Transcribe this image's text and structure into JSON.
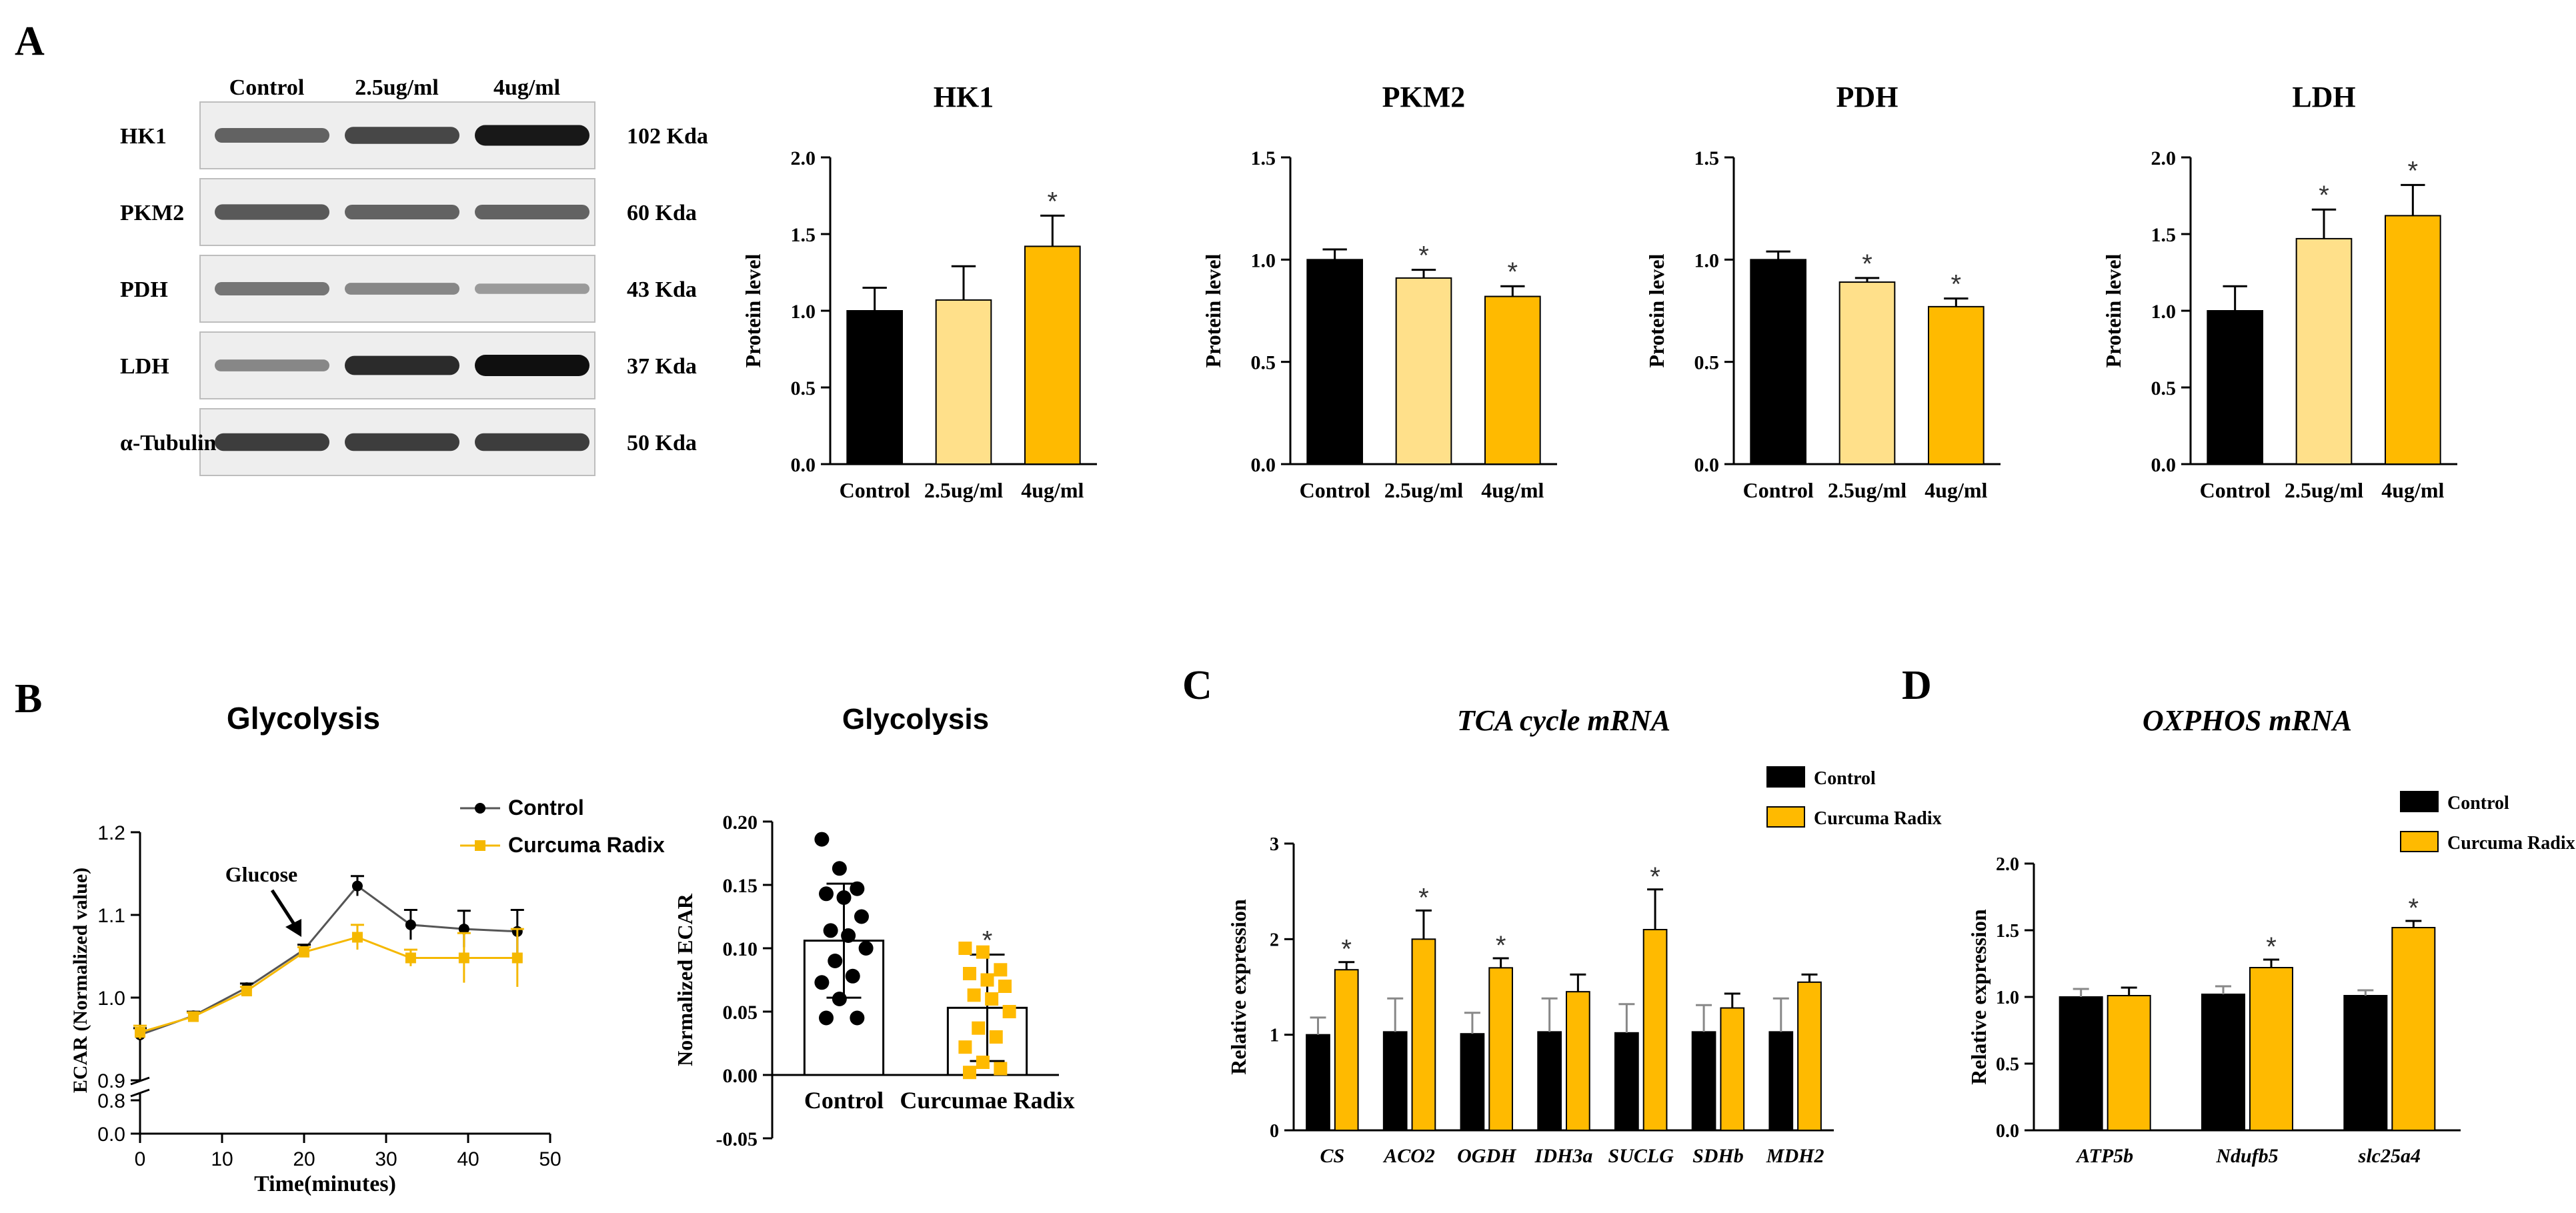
{
  "panels": {
    "A": "A",
    "B": "B",
    "C": "C",
    "D": "D"
  },
  "colors": {
    "control": "#000000",
    "low": "#FFE08A",
    "high": "#FFBA00",
    "herb": "#FFBA00",
    "line_herb": "#F5B800"
  },
  "western": {
    "columns": [
      "Control",
      "2.5ug/ml",
      "4ug/ml"
    ],
    "rows": [
      {
        "name": "HK1",
        "kda": "102 Kda",
        "intensity": [
          0.55,
          0.7,
          0.95
        ]
      },
      {
        "name": "PKM2",
        "kda": "60 Kda",
        "intensity": [
          0.6,
          0.55,
          0.55
        ]
      },
      {
        "name": "PDH",
        "kda": "43 Kda",
        "intensity": [
          0.45,
          0.35,
          0.25
        ]
      },
      {
        "name": "LDH",
        "kda": "37 Kda",
        "intensity": [
          0.35,
          0.85,
          1.0
        ]
      },
      {
        "name": "α-Tubulin",
        "kda": "50 Kda",
        "intensity": [
          0.75,
          0.75,
          0.75
        ]
      }
    ]
  },
  "chart_data": [
    {
      "id": "hk1",
      "type": "bar",
      "title": "HK1",
      "ylabel": "Protein level",
      "categories": [
        "Control",
        "2.5ug/ml",
        "4ug/ml"
      ],
      "values": [
        1.0,
        1.07,
        1.42
      ],
      "errors": [
        0.15,
        0.22,
        0.2
      ],
      "significance": [
        "",
        "",
        "*"
      ],
      "ylim": [
        0,
        2.0
      ],
      "yticks": [
        "0.0",
        "0.5",
        "1.0",
        "1.5",
        "2.0"
      ],
      "ytick_values": [
        0,
        0.5,
        1.0,
        1.5,
        2.0
      ]
    },
    {
      "id": "pkm2",
      "type": "bar",
      "title": "PKM2",
      "ylabel": "Protein level",
      "categories": [
        "Control",
        "2.5ug/ml",
        "4ug/ml"
      ],
      "values": [
        1.0,
        0.91,
        0.82
      ],
      "errors": [
        0.05,
        0.04,
        0.05
      ],
      "significance": [
        "",
        "*",
        "*"
      ],
      "ylim": [
        0,
        1.5
      ],
      "yticks": [
        "0.0",
        "0.5",
        "1.0",
        "1.5"
      ],
      "ytick_values": [
        0,
        0.5,
        1.0,
        1.5
      ]
    },
    {
      "id": "pdh",
      "type": "bar",
      "title": "PDH",
      "ylabel": "Protein level",
      "categories": [
        "Control",
        "2.5ug/ml",
        "4ug/ml"
      ],
      "values": [
        1.0,
        0.89,
        0.77
      ],
      "errors": [
        0.04,
        0.02,
        0.04
      ],
      "significance": [
        "",
        "*",
        "*"
      ],
      "ylim": [
        0,
        1.5
      ],
      "yticks": [
        "0.0",
        "0.5",
        "1.0",
        "1.5"
      ],
      "ytick_values": [
        0,
        0.5,
        1.0,
        1.5
      ]
    },
    {
      "id": "ldh",
      "type": "bar",
      "title": "LDH",
      "ylabel": "Protein level",
      "categories": [
        "Control",
        "2.5ug/ml",
        "4ug/ml"
      ],
      "values": [
        1.0,
        1.47,
        1.62
      ],
      "errors": [
        0.16,
        0.19,
        0.2
      ],
      "significance": [
        "",
        "*",
        "*"
      ],
      "ylim": [
        0,
        2.0
      ],
      "yticks": [
        "0.0",
        "0.5",
        "1.0",
        "1.5",
        "2.0"
      ],
      "ytick_values": [
        0,
        0.5,
        1.0,
        1.5,
        2.0
      ]
    },
    {
      "id": "ecar_time",
      "type": "line",
      "title": "Glycolysis",
      "xlabel": "Time(minutes)",
      "ylabel": "ECAR (Normalized value)",
      "annotation": "Glucose",
      "x": [
        0,
        6.5,
        13,
        20,
        26.5,
        33,
        39.5,
        46
      ],
      "xticks": [
        "0",
        "10",
        "20",
        "30",
        "40",
        "50"
      ],
      "xtick_values": [
        0,
        10,
        20,
        30,
        40,
        50
      ],
      "yticks": [
        "0.9",
        "1.0",
        "1.1",
        "1.2"
      ],
      "ytick_values": [
        0.9,
        1.0,
        1.1,
        1.2
      ],
      "ybreak_ticks": [
        "0.0",
        "0.8"
      ],
      "xlim": [
        0,
        50
      ],
      "ylim": [
        0.9,
        1.2
      ],
      "series": [
        {
          "name": "Control",
          "values": [
            0.955,
            0.978,
            1.012,
            1.058,
            1.135,
            1.088,
            1.083,
            1.08
          ],
          "errors": [
            0.008,
            0.005,
            0.005,
            0.006,
            0.012,
            0.018,
            0.022,
            0.026
          ]
        },
        {
          "name": "Curcuma Radix",
          "values": [
            0.958,
            0.977,
            1.008,
            1.055,
            1.073,
            1.048,
            1.048,
            1.048
          ],
          "errors": [
            0.008,
            0.005,
            0.005,
            0.006,
            0.015,
            0.01,
            0.03,
            0.035
          ]
        }
      ]
    },
    {
      "id": "ecar_bar",
      "type": "bar",
      "title": "Glycolysis",
      "ylabel": "Normalized ECAR",
      "categories": [
        "Control",
        "Curcumae Radix"
      ],
      "values": [
        0.106,
        0.053
      ],
      "errors": [
        0.045,
        0.042
      ],
      "significance": [
        "",
        "*"
      ],
      "ylim": [
        -0.05,
        0.2
      ],
      "yticks": [
        "-0.05",
        "0.00",
        "0.05",
        "0.10",
        "0.15",
        "0.20"
      ],
      "ytick_values": [
        -0.05,
        0,
        0.05,
        0.1,
        0.15,
        0.2
      ],
      "points": [
        [
          0.186,
          0.163,
          0.147,
          0.143,
          0.14,
          0.125,
          0.114,
          0.11,
          0.1,
          0.09,
          0.078,
          0.073,
          0.06,
          0.045,
          0.045
        ],
        [
          0.1,
          0.097,
          0.083,
          0.08,
          0.075,
          0.07,
          0.063,
          0.06,
          0.05,
          0.037,
          0.03,
          0.022,
          0.01,
          0.005,
          0.002
        ]
      ]
    },
    {
      "id": "tca",
      "type": "bar",
      "title": "TCA cycle mRNA",
      "ylabel": "Relative expression",
      "categories": [
        "CS",
        "ACO2",
        "OGDH",
        "IDH3a",
        "SUCLG",
        "SDHb",
        "MDH2"
      ],
      "series": [
        {
          "name": "Control",
          "values": [
            1.0,
            1.03,
            1.01,
            1.03,
            1.02,
            1.03,
            1.03
          ],
          "errors": [
            0.18,
            0.35,
            0.22,
            0.35,
            0.3,
            0.28,
            0.35
          ]
        },
        {
          "name": "Curcuma Radix",
          "values": [
            1.68,
            2.0,
            1.7,
            1.45,
            2.1,
            1.28,
            1.55
          ],
          "errors": [
            0.08,
            0.3,
            0.1,
            0.18,
            0.42,
            0.15,
            0.08
          ]
        }
      ],
      "significance": [
        "*",
        "*",
        "*",
        "",
        "*",
        "",
        ""
      ],
      "ylim": [
        0,
        3
      ],
      "yticks": [
        "0",
        "1",
        "2",
        "3"
      ],
      "ytick_values": [
        0,
        1,
        2,
        3
      ]
    },
    {
      "id": "oxphos",
      "type": "bar",
      "title": "OXPHOS mRNA",
      "ylabel": "Relative expression",
      "categories": [
        "ATP5b",
        "Ndufb5",
        "slc25a4"
      ],
      "series": [
        {
          "name": "Control",
          "values": [
            1.0,
            1.02,
            1.01
          ],
          "errors": [
            0.06,
            0.06,
            0.04
          ]
        },
        {
          "name": "Curcuma Radix",
          "values": [
            1.01,
            1.22,
            1.52
          ],
          "errors": [
            0.06,
            0.06,
            0.05
          ]
        }
      ],
      "significance": [
        "",
        "*",
        "*"
      ],
      "ylim": [
        0,
        2.0
      ],
      "yticks": [
        "0.0",
        "0.5",
        "1.0",
        "1.5",
        "2.0"
      ],
      "ytick_values": [
        0,
        0.5,
        1.0,
        1.5,
        2.0
      ]
    }
  ]
}
